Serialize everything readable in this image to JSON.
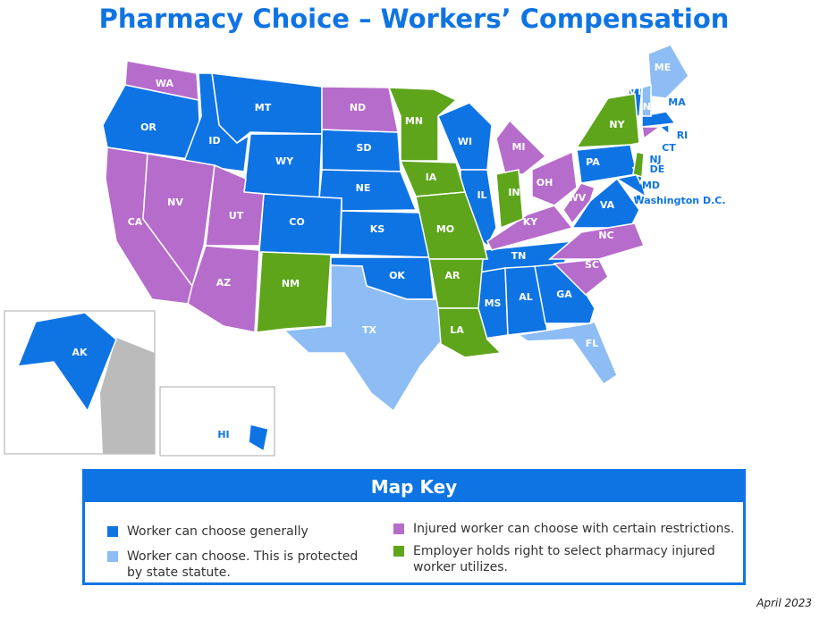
{
  "title": "Pharmacy Choice – Workers’ Compensation",
  "key": {
    "title": "Map Key",
    "items": [
      {
        "label": "Worker can choose generally",
        "color": "#0f74e3",
        "states": [
          "MT",
          "OR",
          "ID",
          "WY",
          "SD",
          "NE",
          "CO",
          "KS",
          "OK",
          "WI",
          "IL",
          "TN",
          "MS",
          "AL",
          "GA",
          "PA",
          "VA",
          "MD",
          "DE",
          "VT",
          "MA",
          "RI",
          "AK",
          "HI",
          "Washington D.C."
        ]
      },
      {
        "label": "Worker can choose. This is protected by state statute.",
        "color": "#8dbdf4",
        "states": [
          "ME",
          "NH",
          "TX",
          "FL"
        ]
      },
      {
        "label": "Injured worker can choose with certain restrictions.",
        "color": "#b66ccb",
        "states": [
          "WA",
          "ND",
          "CA",
          "NV",
          "UT",
          "AZ",
          "MI",
          "OH",
          "KY",
          "WV",
          "NC",
          "SC",
          "CT"
        ]
      },
      {
        "label": "Employer holds right to select pharmacy injured worker utilizes.",
        "color": "#5ea51c",
        "states": [
          "MN",
          "IA",
          "MO",
          "AR",
          "LA",
          "NM",
          "IN",
          "NY",
          "NJ"
        ]
      }
    ]
  },
  "date": "April 2023"
}
